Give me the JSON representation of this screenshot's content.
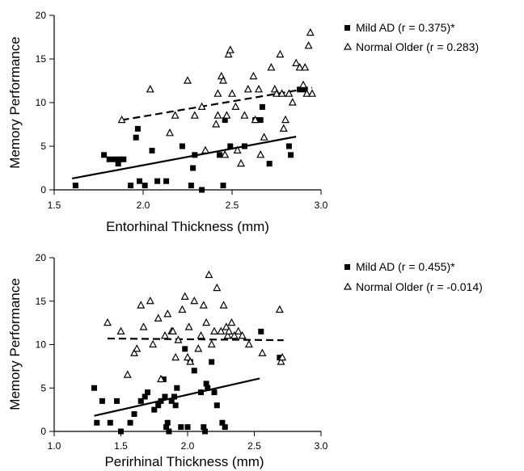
{
  "chart_data": [
    {
      "type": "scatter",
      "xlabel": "Entorhinal Thickness (mm)",
      "ylabel": "Memory Performance",
      "xlim": [
        1.5,
        3.0
      ],
      "ylim": [
        0,
        20
      ],
      "xticks": [
        "1.5",
        "2.0",
        "2.5",
        "3.0"
      ],
      "yticks": [
        "0",
        "5",
        "10",
        "15",
        "20"
      ],
      "grid": false,
      "legend_position": "top-right, outside",
      "series": [
        {
          "name": "Mild AD (r = 0.375)*",
          "marker": "filled-square",
          "fit_line": {
            "style": "solid",
            "x": [
              1.6,
              2.86
            ],
            "y": [
              1.3,
              6.1
            ]
          },
          "points": [
            [
              1.62,
              0.5
            ],
            [
              1.78,
              4.0
            ],
            [
              1.81,
              3.5
            ],
            [
              1.84,
              3.5
            ],
            [
              1.86,
              3.0
            ],
            [
              1.87,
              3.5
            ],
            [
              1.89,
              3.5
            ],
            [
              1.93,
              0.5
            ],
            [
              1.96,
              6.0
            ],
            [
              1.97,
              7.0
            ],
            [
              1.98,
              1.0
            ],
            [
              2.01,
              0.5
            ],
            [
              2.05,
              4.5
            ],
            [
              2.08,
              1.0
            ],
            [
              2.13,
              1.0
            ],
            [
              2.22,
              5.0
            ],
            [
              2.27,
              0.5
            ],
            [
              2.28,
              2.5
            ],
            [
              2.29,
              4.0
            ],
            [
              2.33,
              0.0
            ],
            [
              2.43,
              4.0
            ],
            [
              2.45,
              0.5
            ],
            [
              2.46,
              8.0
            ],
            [
              2.49,
              5.0
            ],
            [
              2.57,
              5.0
            ],
            [
              2.63,
              8.0
            ],
            [
              2.66,
              8.0
            ],
            [
              2.67,
              9.5
            ],
            [
              2.71,
              3.0
            ],
            [
              2.82,
              5.0
            ],
            [
              2.83,
              4.0
            ],
            [
              2.88,
              11.5
            ],
            [
              2.91,
              11.5
            ]
          ]
        },
        {
          "name": "Normal Older (r = 0.283)",
          "marker": "open-triangle",
          "fit_line": {
            "style": "dashed",
            "x": [
              1.88,
              2.95
            ],
            "y": [
              8.0,
              11.7
            ]
          },
          "points": [
            [
              1.88,
              8.0
            ],
            [
              2.04,
              11.5
            ],
            [
              2.15,
              6.5
            ],
            [
              2.18,
              8.5
            ],
            [
              2.25,
              12.5
            ],
            [
              2.29,
              8.5
            ],
            [
              2.33,
              9.5
            ],
            [
              2.35,
              4.5
            ],
            [
              2.41,
              7.5
            ],
            [
              2.42,
              11.0
            ],
            [
              2.42,
              8.5
            ],
            [
              2.44,
              13.0
            ],
            [
              2.45,
              12.5
            ],
            [
              2.46,
              4.0
            ],
            [
              2.47,
              8.5
            ],
            [
              2.48,
              15.5
            ],
            [
              2.49,
              16.0
            ],
            [
              2.5,
              11.0
            ],
            [
              2.52,
              9.5
            ],
            [
              2.53,
              4.5
            ],
            [
              2.55,
              3.0
            ],
            [
              2.57,
              8.5
            ],
            [
              2.59,
              11.5
            ],
            [
              2.62,
              13.0
            ],
            [
              2.63,
              8.0
            ],
            [
              2.65,
              11.5
            ],
            [
              2.66,
              4.0
            ],
            [
              2.68,
              6.0
            ],
            [
              2.72,
              14.0
            ],
            [
              2.74,
              11.5
            ],
            [
              2.75,
              11.0
            ],
            [
              2.77,
              15.5
            ],
            [
              2.78,
              11.0
            ],
            [
              2.79,
              7.0
            ],
            [
              2.8,
              8.0
            ],
            [
              2.82,
              11.0
            ],
            [
              2.84,
              10.0
            ],
            [
              2.86,
              14.5
            ],
            [
              2.88,
              14.0
            ],
            [
              2.9,
              12.0
            ],
            [
              2.91,
              14.0
            ],
            [
              2.92,
              11.0
            ],
            [
              2.93,
              16.5
            ],
            [
              2.94,
              18.0
            ],
            [
              2.95,
              11.0
            ]
          ]
        }
      ]
    },
    {
      "type": "scatter",
      "xlabel": "Perirhinal Thickness (mm)",
      "ylabel": "Memory Performance",
      "xlim": [
        1.0,
        3.0
      ],
      "ylim": [
        0,
        20
      ],
      "xticks": [
        "1.0",
        "1.5",
        "2.0",
        "2.5",
        "3.0"
      ],
      "yticks": [
        "0",
        "5",
        "10",
        "15",
        "20"
      ],
      "grid": false,
      "legend_position": "top-right, outside",
      "series": [
        {
          "name": "Mild AD (r = 0.455)*",
          "marker": "filled-square",
          "fit_line": {
            "style": "solid",
            "x": [
              1.3,
              2.54
            ],
            "y": [
              1.8,
              6.1
            ]
          },
          "points": [
            [
              1.3,
              5.0
            ],
            [
              1.32,
              1.0
            ],
            [
              1.36,
              3.5
            ],
            [
              1.42,
              1.0
            ],
            [
              1.47,
              3.5
            ],
            [
              1.5,
              0.0
            ],
            [
              1.57,
              1.0
            ],
            [
              1.6,
              2.0
            ],
            [
              1.65,
              3.5
            ],
            [
              1.68,
              4.0
            ],
            [
              1.7,
              4.5
            ],
            [
              1.75,
              2.5
            ],
            [
              1.78,
              3.0
            ],
            [
              1.8,
              3.5
            ],
            [
              1.82,
              6.0
            ],
            [
              1.83,
              4.0
            ],
            [
              1.84,
              0.5
            ],
            [
              1.85,
              1.0
            ],
            [
              1.86,
              0.0
            ],
            [
              1.88,
              3.5
            ],
            [
              1.9,
              4.0
            ],
            [
              1.91,
              3.0
            ],
            [
              1.92,
              5.0
            ],
            [
              1.95,
              0.5
            ],
            [
              1.98,
              9.5
            ],
            [
              2.0,
              0.5
            ],
            [
              2.02,
              8.0
            ],
            [
              2.05,
              7.0
            ],
            [
              2.1,
              4.5
            ],
            [
              2.12,
              0.5
            ],
            [
              2.13,
              0.0
            ],
            [
              2.14,
              5.5
            ],
            [
              2.15,
              5.0
            ],
            [
              2.18,
              8.0
            ],
            [
              2.2,
              4.5
            ],
            [
              2.22,
              3.0
            ],
            [
              2.26,
              1.0
            ],
            [
              2.28,
              0.5
            ],
            [
              2.55,
              11.5
            ],
            [
              2.69,
              8.5
            ]
          ]
        },
        {
          "name": "Normal Older (r = -0.014)",
          "marker": "open-triangle",
          "fit_line": {
            "style": "dashed",
            "x": [
              1.4,
              2.72
            ],
            "y": [
              10.7,
              10.5
            ]
          },
          "points": [
            [
              1.4,
              12.5
            ],
            [
              1.5,
              11.5
            ],
            [
              1.55,
              6.5
            ],
            [
              1.6,
              9.0
            ],
            [
              1.62,
              9.5
            ],
            [
              1.65,
              14.5
            ],
            [
              1.67,
              12.0
            ],
            [
              1.72,
              15.0
            ],
            [
              1.74,
              10.0
            ],
            [
              1.78,
              13.0
            ],
            [
              1.8,
              6.0
            ],
            [
              1.83,
              11.0
            ],
            [
              1.85,
              13.5
            ],
            [
              1.88,
              11.5
            ],
            [
              1.89,
              11.5
            ],
            [
              1.91,
              8.5
            ],
            [
              1.93,
              10.5
            ],
            [
              1.96,
              14.0
            ],
            [
              1.98,
              15.5
            ],
            [
              2.0,
              8.5
            ],
            [
              2.01,
              12.0
            ],
            [
              2.02,
              8.0
            ],
            [
              2.05,
              15.0
            ],
            [
              2.08,
              9.5
            ],
            [
              2.1,
              11.0
            ],
            [
              2.12,
              14.5
            ],
            [
              2.14,
              12.5
            ],
            [
              2.16,
              18.0
            ],
            [
              2.18,
              10.0
            ],
            [
              2.2,
              11.5
            ],
            [
              2.22,
              16.5
            ],
            [
              2.25,
              11.5
            ],
            [
              2.27,
              14.5
            ],
            [
              2.29,
              12.0
            ],
            [
              2.3,
              11.0
            ],
            [
              2.31,
              11.5
            ],
            [
              2.33,
              12.5
            ],
            [
              2.35,
              11.0
            ],
            [
              2.38,
              11.5
            ],
            [
              2.41,
              11.0
            ],
            [
              2.46,
              10.0
            ],
            [
              2.56,
              9.0
            ],
            [
              2.69,
              14.0
            ],
            [
              2.7,
              8.0
            ],
            [
              2.71,
              8.5
            ]
          ]
        }
      ]
    }
  ]
}
